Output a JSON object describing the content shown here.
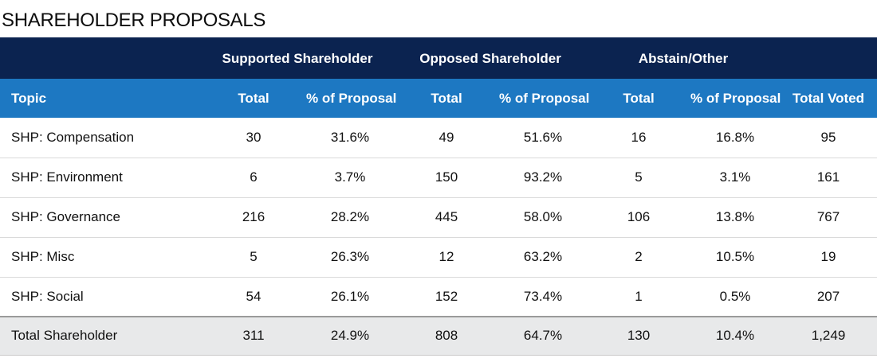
{
  "title": "SHAREHOLDER PROPOSALS",
  "groups": {
    "supported": "Supported Shareholder",
    "opposed": "Opposed Shareholder",
    "abstain": "Abstain/Other"
  },
  "columns": [
    "Topic",
    "Total",
    "% of Proposal",
    "Total",
    "% of Proposal",
    "Total",
    "% of Proposal",
    "Total Voted"
  ],
  "rows": [
    [
      "SHP: Compensation",
      "30",
      "31.6%",
      "49",
      "51.6%",
      "16",
      "16.8%",
      "95"
    ],
    [
      "SHP: Environment",
      "6",
      "3.7%",
      "150",
      "93.2%",
      "5",
      "3.1%",
      "161"
    ],
    [
      "SHP: Governance",
      "216",
      "28.2%",
      "445",
      "58.0%",
      "106",
      "13.8%",
      "767"
    ],
    [
      "SHP: Misc",
      "5",
      "26.3%",
      "12",
      "63.2%",
      "2",
      "10.5%",
      "19"
    ],
    [
      "SHP: Social",
      "54",
      "26.1%",
      "152",
      "73.4%",
      "1",
      "0.5%",
      "207"
    ]
  ],
  "total_row": [
    "Total Shareholder",
    "311",
    "24.9%",
    "808",
    "64.7%",
    "130",
    "10.4%",
    "1,249"
  ],
  "colors": {
    "group_header_bg": "#0b2350",
    "column_header_bg": "#1d78c2",
    "total_row_bg": "#e8e9ea"
  }
}
